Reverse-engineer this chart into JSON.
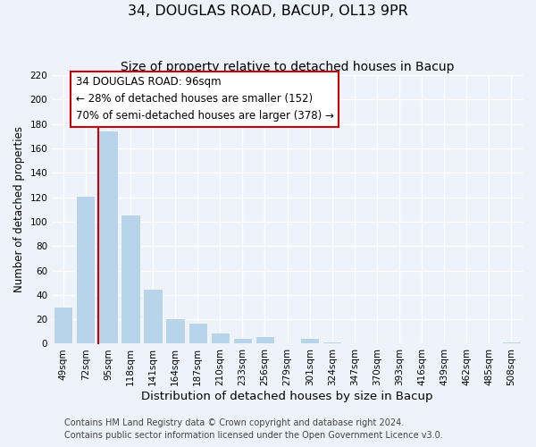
{
  "title": "34, DOUGLAS ROAD, BACUP, OL13 9PR",
  "subtitle": "Size of property relative to detached houses in Bacup",
  "xlabel": "Distribution of detached houses by size in Bacup",
  "ylabel": "Number of detached properties",
  "bar_color": "#b8d4ea",
  "highlight_color": "#cc0000",
  "categories": [
    "49sqm",
    "72sqm",
    "95sqm",
    "118sqm",
    "141sqm",
    "164sqm",
    "187sqm",
    "210sqm",
    "233sqm",
    "256sqm",
    "279sqm",
    "301sqm",
    "324sqm",
    "347sqm",
    "370sqm",
    "393sqm",
    "416sqm",
    "439sqm",
    "462sqm",
    "485sqm",
    "508sqm"
  ],
  "values": [
    30,
    121,
    175,
    106,
    45,
    21,
    17,
    9,
    5,
    6,
    0,
    5,
    2,
    0,
    0,
    0,
    0,
    0,
    0,
    0,
    2
  ],
  "highlight_bar_index": 2,
  "ylim": [
    0,
    220
  ],
  "yticks": [
    0,
    20,
    40,
    60,
    80,
    100,
    120,
    140,
    160,
    180,
    200,
    220
  ],
  "annotation_title": "34 DOUGLAS ROAD: 96sqm",
  "annotation_line1": "← 28% of detached houses are smaller (152)",
  "annotation_line2": "70% of semi-detached houses are larger (378) →",
  "footer1": "Contains HM Land Registry data © Crown copyright and database right 2024.",
  "footer2": "Contains public sector information licensed under the Open Government Licence v3.0.",
  "background_color": "#eef2fb",
  "grid_color": "#ffffff",
  "title_fontsize": 11.5,
  "subtitle_fontsize": 10,
  "xlabel_fontsize": 9.5,
  "ylabel_fontsize": 8.5,
  "tick_fontsize": 7.5,
  "annotation_fontsize": 8.5,
  "footer_fontsize": 7
}
